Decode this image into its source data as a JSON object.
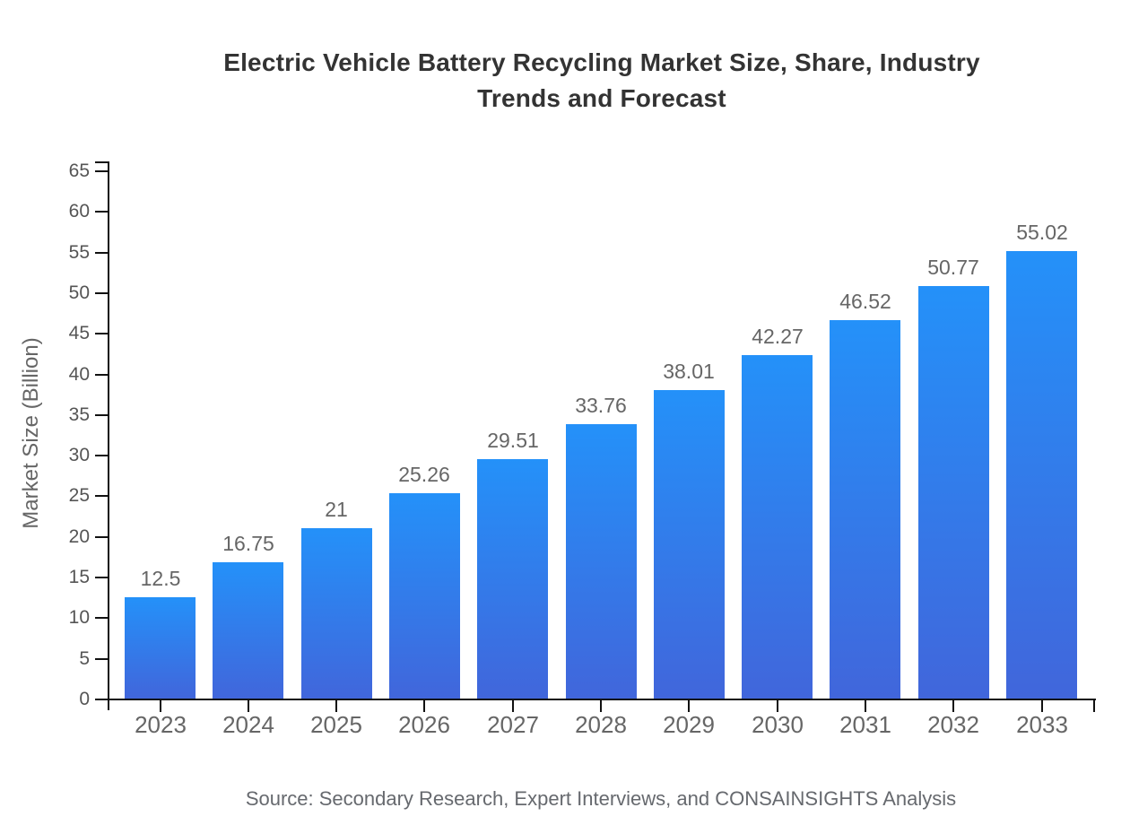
{
  "chart_data": {
    "type": "bar",
    "title": "Electric Vehicle Battery Recycling Market Size, Share, Industry Trends and Forecast",
    "ylabel": "Market Size (Billion)",
    "xlabel": "",
    "categories": [
      "2023",
      "2024",
      "2025",
      "2026",
      "2027",
      "2028",
      "2029",
      "2030",
      "2031",
      "2032",
      "2033"
    ],
    "values": [
      12.5,
      16.75,
      21,
      25.26,
      29.51,
      33.76,
      38.01,
      42.27,
      46.52,
      50.77,
      55.02
    ],
    "data_labels": [
      "12.5",
      "16.75",
      "21",
      "25.26",
      "29.51",
      "33.76",
      "38.01",
      "42.27",
      "46.52",
      "50.77",
      "55.02"
    ],
    "ylim": [
      0,
      65
    ],
    "ytick_step": 5,
    "grid": "off",
    "legend": "none",
    "source_note": "Source: Secondary Research, Expert Interviews, and CONSAINSIGHTS Analysis",
    "colors": {
      "bar_gradient_top": "#2491F9",
      "bar_gradient_bottom": "#4166DB",
      "axis": "#111111",
      "ytick_label": "#555555",
      "xtick_label": "#666666",
      "data_label": "#666666",
      "title": "#333333",
      "source": "#66696E"
    }
  }
}
